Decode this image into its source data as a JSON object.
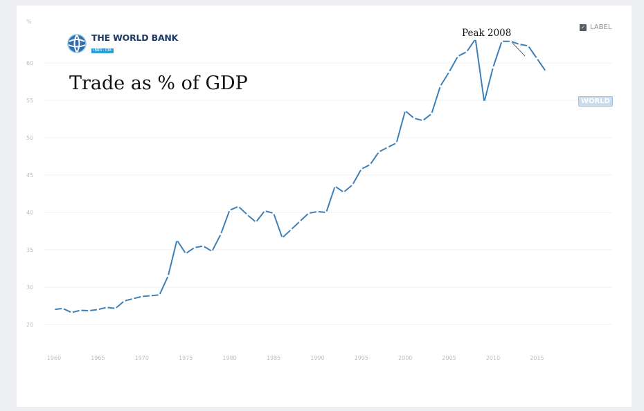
{
  "logo": {
    "name": "THE WORLD BANK",
    "subtitle": "IBRD · IDA"
  },
  "title": "Trade as % of GDP",
  "annotation": "Peak 2008",
  "label_toggle": {
    "text": "LABEL",
    "checked": true
  },
  "series_badge": "WORLD",
  "colors": {
    "line": "#3f7fb8",
    "badge_bg": "#c9dcee",
    "grid": "#eef0f3"
  },
  "chart_data": {
    "type": "line",
    "title": "Trade as % of GDP",
    "xlabel": "",
    "ylabel": "%",
    "x_ticks": [
      1960,
      1965,
      1970,
      1975,
      1980,
      1985,
      1990,
      1995,
      2000,
      2005,
      2010,
      2015
    ],
    "y_ticks": [
      20,
      30,
      35,
      40,
      45,
      50,
      55,
      60
    ],
    "xlim": [
      1960,
      2017
    ],
    "grid": true,
    "legend": "none",
    "series": [
      {
        "name": "WORLD",
        "x": [
          1960,
          1961,
          1962,
          1963,
          1964,
          1965,
          1966,
          1967,
          1968,
          1969,
          1970,
          1971,
          1972,
          1973,
          1974,
          1975,
          1976,
          1977,
          1978,
          1979,
          1980,
          1981,
          1982,
          1983,
          1984,
          1985,
          1986,
          1987,
          1988,
          1989,
          1990,
          1991,
          1992,
          1993,
          1994,
          1995,
          1996,
          1997,
          1998,
          1999,
          2000,
          2001,
          2002,
          2003,
          2004,
          2005,
          2006,
          2007,
          2008,
          2009,
          2010,
          2011,
          2012,
          2013,
          2014,
          2015,
          2016
        ],
        "y": [
          24.0,
          24.3,
          23.2,
          23.8,
          23.7,
          24.0,
          24.6,
          24.3,
          26.3,
          26.9,
          27.5,
          27.7,
          27.9,
          31.5,
          36.3,
          34.5,
          35.3,
          35.5,
          34.8,
          37.1,
          40.3,
          40.8,
          39.7,
          38.7,
          40.2,
          39.9,
          36.6,
          37.7,
          38.8,
          39.9,
          40.1,
          40.0,
          43.5,
          42.7,
          43.7,
          45.8,
          46.4,
          48.1,
          48.7,
          49.3,
          53.6,
          52.6,
          52.3,
          53.2,
          56.9,
          58.8,
          60.9,
          61.5,
          63.2,
          54.8,
          59.4,
          62.9,
          62.9,
          62.5,
          62.3,
          60.6,
          58.9
        ]
      }
    ]
  }
}
